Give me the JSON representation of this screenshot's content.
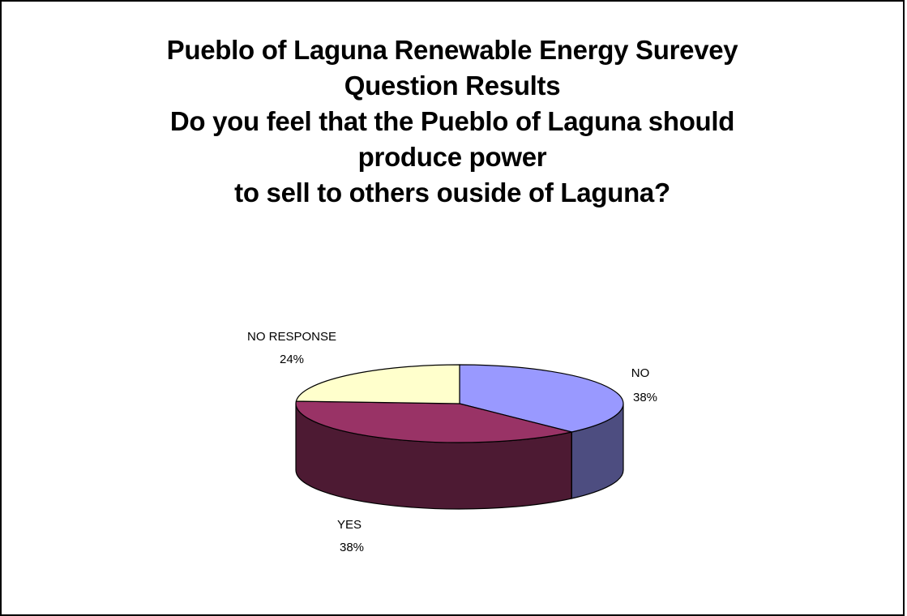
{
  "chart_data": {
    "type": "pie",
    "title_lines": [
      "Pueblo of Laguna Renewable Energy Surevey",
      "Question Results",
      "Do you feel that the Pueblo of Laguna should",
      "produce power",
      "to sell to others ouside of Laguna?"
    ],
    "slices": [
      {
        "name": "NO",
        "label": "NO",
        "percent_label": "38%",
        "value": 38,
        "color": "#9999ff",
        "side_color": "#4d4d80"
      },
      {
        "name": "YES",
        "label": "YES",
        "percent_label": "38%",
        "value": 38,
        "color": "#993366",
        "side_color": "#4d1a33"
      },
      {
        "name": "NO RESPONSE",
        "label": "NO RESPONSE",
        "percent_label": "24%",
        "value": 24,
        "color": "#ffffcc",
        "side_color": "#808066"
      }
    ],
    "style": "3d-pie"
  }
}
